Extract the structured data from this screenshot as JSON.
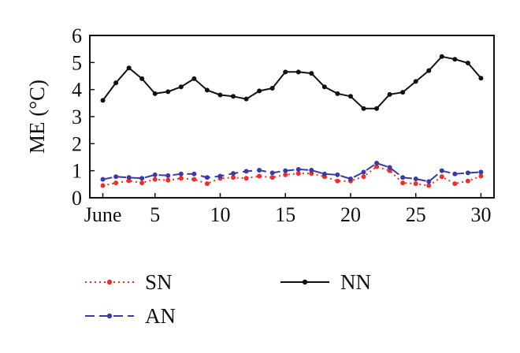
{
  "chart_data": {
    "type": "line",
    "title": "",
    "xlabel": "",
    "ylabel": "ME (°C)",
    "xlim": [
      0,
      31
    ],
    "ylim": [
      0,
      6
    ],
    "x_ticks": [
      {
        "value": 1,
        "label": "June"
      },
      {
        "value": 5,
        "label": "5"
      },
      {
        "value": 10,
        "label": "10"
      },
      {
        "value": 15,
        "label": "15"
      },
      {
        "value": 20,
        "label": "20"
      },
      {
        "value": 25,
        "label": "25"
      },
      {
        "value": 30,
        "label": "30"
      }
    ],
    "y_ticks": [
      0,
      1,
      2,
      3,
      4,
      5,
      6
    ],
    "grid": false,
    "legend_position": "bottom",
    "x": [
      1,
      2,
      3,
      4,
      5,
      6,
      7,
      8,
      9,
      10,
      11,
      12,
      13,
      14,
      15,
      16,
      17,
      18,
      19,
      20,
      21,
      22,
      23,
      24,
      25,
      26,
      27,
      28,
      29,
      30
    ],
    "series": [
      {
        "name": "SN",
        "color": "#e8312a",
        "style": "dotted",
        "values": [
          0.45,
          0.55,
          0.63,
          0.55,
          0.68,
          0.65,
          0.72,
          0.68,
          0.52,
          0.72,
          0.75,
          0.72,
          0.8,
          0.75,
          0.85,
          0.9,
          0.9,
          0.78,
          0.62,
          0.62,
          0.78,
          1.15,
          1.0,
          0.55,
          0.52,
          0.45,
          0.78,
          0.52,
          0.62,
          0.8
        ]
      },
      {
        "name": "AN",
        "color": "#3a3aa8",
        "style": "dashed",
        "values": [
          0.68,
          0.78,
          0.75,
          0.72,
          0.85,
          0.82,
          0.88,
          0.88,
          0.75,
          0.8,
          0.9,
          0.98,
          1.02,
          0.92,
          1.0,
          1.05,
          1.02,
          0.88,
          0.85,
          0.7,
          0.95,
          1.28,
          1.12,
          0.75,
          0.7,
          0.6,
          1.0,
          0.88,
          0.92,
          0.95
        ]
      },
      {
        "name": "NN",
        "color": "#111111",
        "style": "solid",
        "values": [
          3.6,
          4.25,
          4.8,
          4.4,
          3.85,
          3.92,
          4.1,
          4.4,
          3.98,
          3.8,
          3.75,
          3.65,
          3.95,
          4.05,
          4.65,
          4.65,
          4.6,
          4.1,
          3.85,
          3.75,
          3.3,
          3.3,
          3.82,
          3.9,
          4.3,
          4.7,
          5.22,
          5.12,
          4.98,
          4.42
        ]
      }
    ]
  }
}
